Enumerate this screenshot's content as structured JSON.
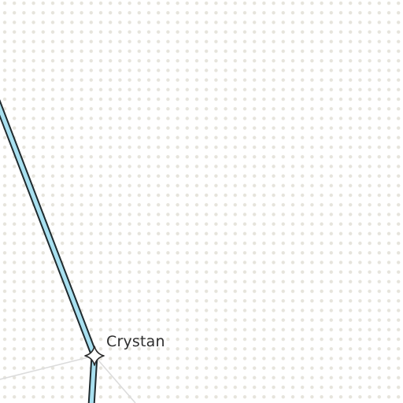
{
  "map": {
    "background_color": "#ffffff",
    "dot_color": "#e6e4dc",
    "route": {
      "color": "#a8e0f0",
      "outline_color": "#1f2a2e"
    },
    "faint_path_color": "#d8d8d8",
    "markers": [
      {
        "label": "Crystan",
        "icon": "four-point-star-icon"
      }
    ]
  }
}
